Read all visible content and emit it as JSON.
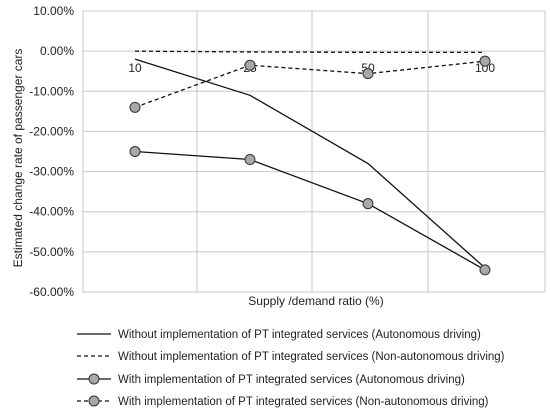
{
  "chart_data": {
    "type": "line",
    "xlabel": "Supply /demand ratio (%)",
    "ylabel": "Estimated change rate of passenger cars",
    "categories": [
      "10",
      "25",
      "50",
      "100"
    ],
    "yticks": [
      "10.00%",
      "0.00%",
      "-10.00%",
      "-20.00%",
      "-30.00%",
      "-40.00%",
      "-50.00%",
      "-60.00%"
    ],
    "ylim": [
      -60,
      10
    ],
    "grid": true,
    "legend_position": "bottom",
    "series": [
      {
        "name": "Without implementation of PT integrated services (Autonomous driving)",
        "values": [
          -2,
          -11,
          -28,
          -54
        ],
        "line": "solid",
        "marker": false
      },
      {
        "name": "Without implementation of PT integrated services (Non-autonomous driving)",
        "values": [
          0,
          -0.2,
          -0.3,
          -0.3
        ],
        "line": "dashed",
        "marker": false
      },
      {
        "name": "With implementation of PT integrated services (Autonomous driving)",
        "values": [
          -25,
          -27,
          -38,
          -54.5
        ],
        "line": "solid",
        "marker": true
      },
      {
        "name": "With implementation of PT integrated services (Non-autonomous driving)",
        "values": [
          -14,
          -3.5,
          -5.6,
          -2.5
        ],
        "line": "dashed",
        "marker": true
      }
    ],
    "colors": {
      "line": "#111111",
      "marker_fill": "#a8a8a8",
      "grid": "#c8c8c8"
    }
  }
}
